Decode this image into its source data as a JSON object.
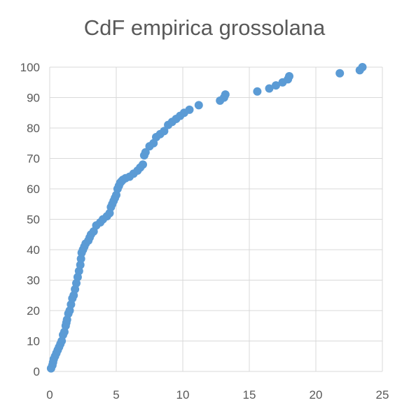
{
  "chart_data": {
    "type": "scatter",
    "title": "CdF empirica grossolana",
    "xlabel": "",
    "ylabel": "",
    "xlim": [
      0,
      25
    ],
    "ylim": [
      0,
      100
    ],
    "x_ticks": [
      0,
      5,
      10,
      15,
      20,
      25
    ],
    "y_ticks": [
      0,
      10,
      20,
      30,
      40,
      50,
      60,
      70,
      80,
      90,
      100
    ],
    "grid": "horizontal and vertical",
    "legend": "none",
    "marker_color": "#5B9BD5",
    "series": [
      {
        "x": [
          0.1,
          0.2,
          0.25,
          0.3,
          0.4,
          0.5,
          0.6,
          0.7,
          0.8,
          0.9,
          1.0,
          1.1,
          1.2,
          1.25,
          1.3,
          1.4,
          1.5,
          1.6,
          1.7,
          1.8,
          1.9,
          2.0,
          2.1,
          2.2,
          2.3,
          2.35,
          2.4,
          2.5,
          2.6,
          2.7,
          2.9,
          3.0,
          3.1,
          3.3,
          3.5,
          3.8,
          4.0,
          4.3,
          4.5,
          4.6,
          4.7,
          4.8,
          4.9,
          5.0,
          5.1,
          5.2,
          5.3,
          5.4,
          5.5,
          5.7,
          6.0,
          6.3,
          6.6,
          6.8,
          7.0,
          7.1,
          7.2,
          7.5,
          7.8,
          8.0,
          8.3,
          8.6,
          8.9,
          9.2,
          9.5,
          9.8,
          10.1,
          10.5,
          11.2,
          12.8,
          13.1,
          13.2,
          15.6,
          16.5,
          17.0,
          17.5,
          17.9,
          18.0,
          21.8,
          23.3,
          23.5
        ],
        "y": [
          1,
          2,
          3,
          4,
          5,
          6,
          7,
          8,
          9,
          10,
          12,
          13,
          15,
          16,
          17,
          19,
          20,
          22,
          24,
          25,
          27,
          29,
          31,
          33,
          35,
          37,
          39,
          40,
          41,
          42,
          43,
          44,
          45,
          46,
          48,
          49,
          50,
          51,
          52,
          54,
          55,
          56,
          57,
          58,
          60,
          61,
          62,
          62.5,
          63,
          63.5,
          64,
          65,
          66,
          67,
          68,
          71,
          72,
          74,
          75,
          77,
          78,
          79,
          81,
          82,
          83,
          84,
          85,
          86,
          87.5,
          89,
          90,
          91,
          92,
          93,
          94,
          95,
          96,
          97,
          98,
          99,
          100
        ]
      }
    ]
  }
}
